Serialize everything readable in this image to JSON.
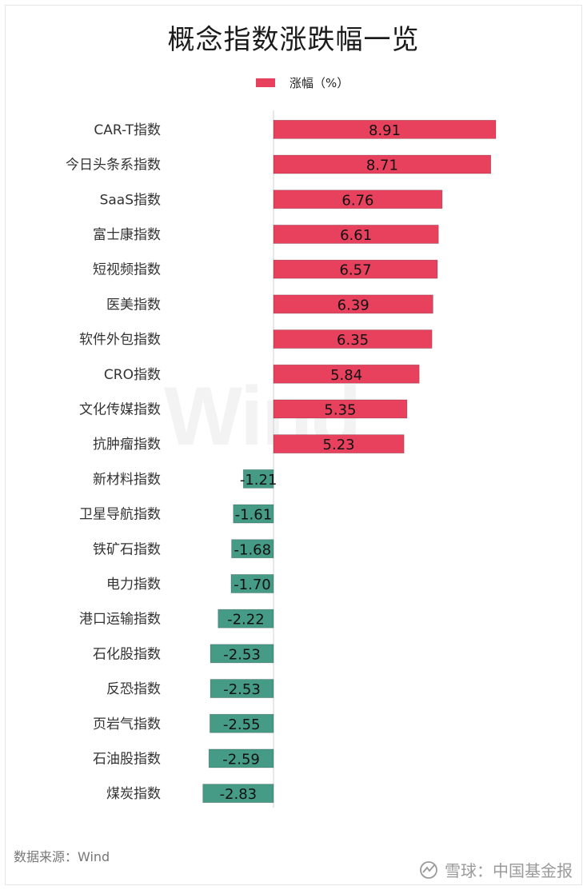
{
  "title": "概念指数涨跌幅一览",
  "legend_label": "涨幅（%）",
  "watermark": "Wind",
  "source": "数据来源：Wind",
  "footer_brand": "雪球：中国基金报",
  "footer_icon": "snowball-logo-icon",
  "colors": {
    "positive": "#e8415e",
    "negative": "#459b86",
    "axis": "#d0d0d0",
    "text": "#222222"
  },
  "chart_data": {
    "type": "bar",
    "orientation": "horizontal",
    "title": "概念指数涨跌幅一览",
    "categories": [
      "CAR-T指数",
      "今日头条系指数",
      "SaaS指数",
      "富士康指数",
      "短视频指数",
      "医美指数",
      "软件外包指数",
      "CRO指数",
      "文化传媒指数",
      "抗肿瘤指数",
      "新材料指数",
      "卫星导航指数",
      "铁矿石指数",
      "电力指数",
      "港口运输指数",
      "石化股指数",
      "反恐指数",
      "页岩气指数",
      "石油股指数",
      "煤炭指数"
    ],
    "series": [
      {
        "name": "涨幅（%）",
        "values": [
          8.91,
          8.71,
          6.76,
          6.61,
          6.57,
          6.39,
          6.35,
          5.84,
          5.35,
          5.23,
          -1.21,
          -1.61,
          -1.68,
          -1.7,
          -2.22,
          -2.53,
          -2.53,
          -2.55,
          -2.59,
          -2.83
        ]
      }
    ],
    "data_labels": [
      "8.91",
      "8.71",
      "6.76",
      "6.61",
      "6.57",
      "6.39",
      "6.35",
      "5.84",
      "5.35",
      "5.23",
      "-1.21",
      "-1.61",
      "-1.68",
      "-1.70",
      "-2.22",
      "-2.53",
      "-2.53",
      "-2.55",
      "-2.59",
      "-2.83"
    ],
    "legend_position": "top",
    "grid": false
  }
}
